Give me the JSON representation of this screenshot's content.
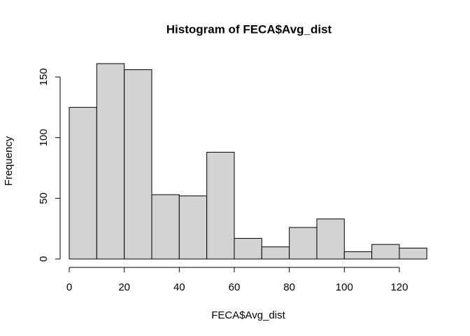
{
  "chart_data": {
    "type": "histogram",
    "title": "Histogram of FECA$Avg_dist",
    "x_label": "FECA$Avg_dist",
    "y_label": "Frequency",
    "bins": [
      0,
      10,
      20,
      30,
      40,
      50,
      60,
      70,
      80,
      90,
      100,
      110,
      120,
      130
    ],
    "values": [
      125,
      161,
      156,
      53,
      52,
      88,
      17,
      10,
      26,
      33,
      6,
      12,
      9
    ],
    "color": "#d3d3d3",
    "xlim": [
      0,
      130
    ],
    "xticks": [
      0,
      20,
      40,
      60,
      80,
      100,
      120
    ],
    "ylim": [
      0,
      161
    ],
    "yticks": [
      0,
      50,
      100,
      150
    ]
  }
}
